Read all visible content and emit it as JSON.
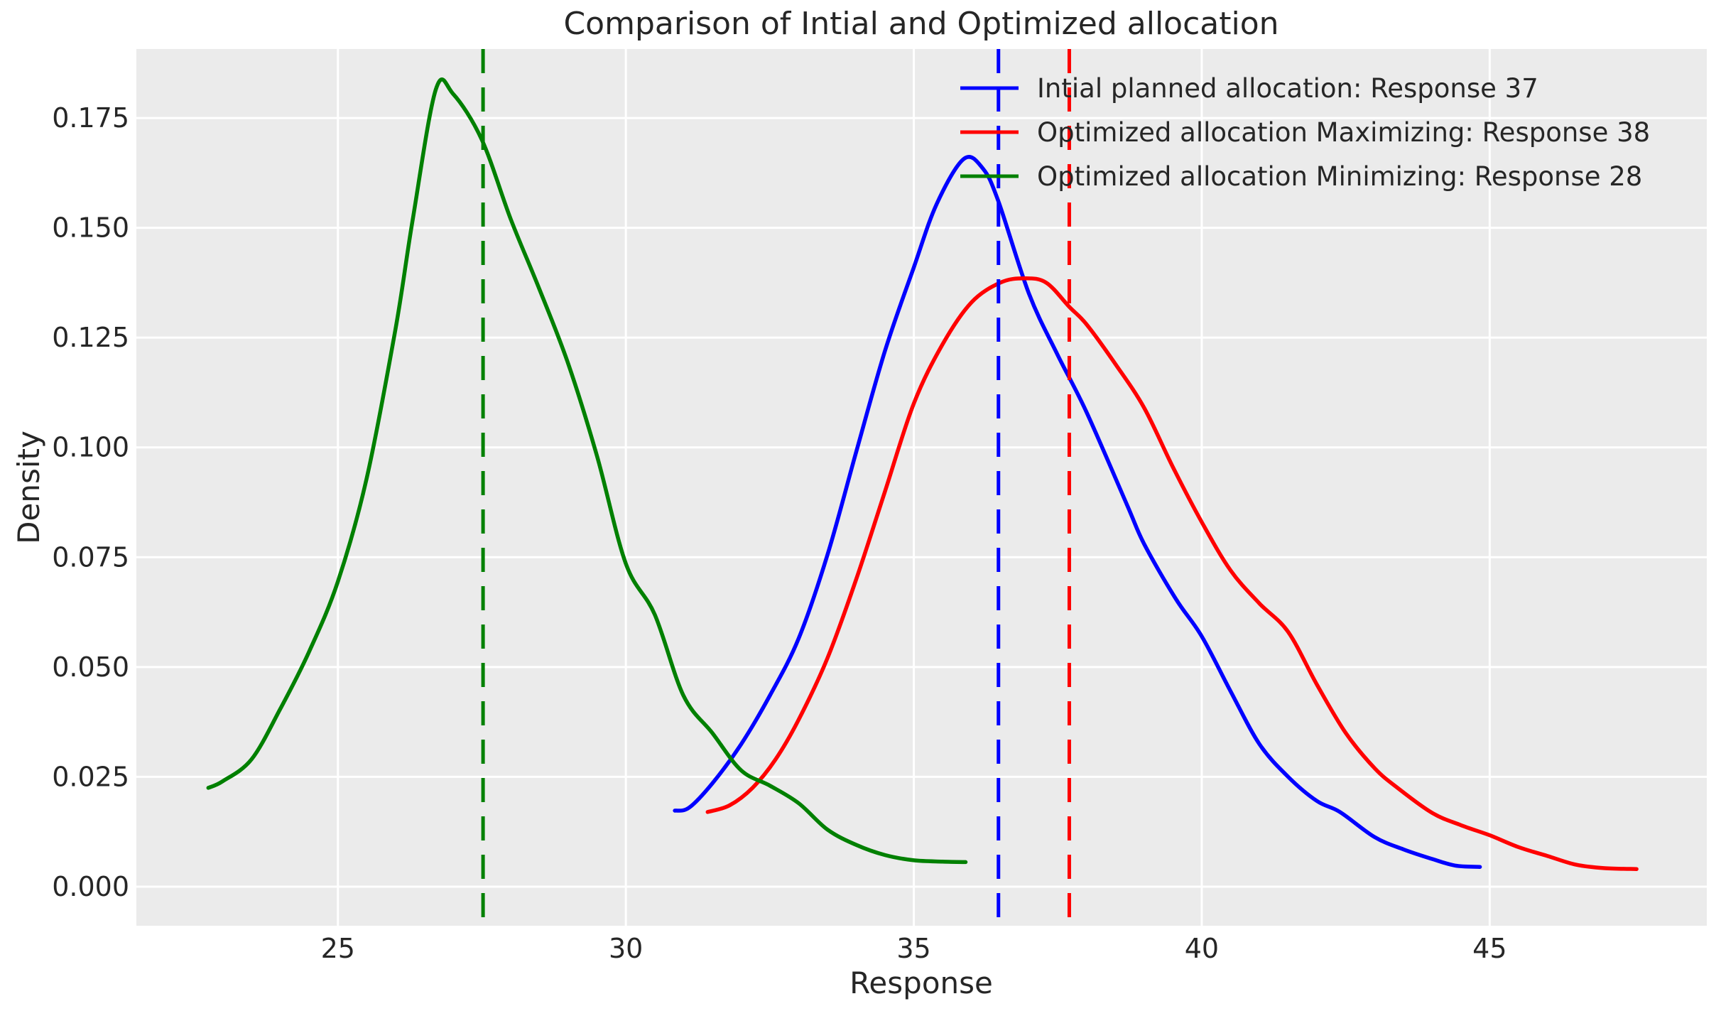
{
  "chart_data": {
    "type": "line",
    "title": "Comparison of Intial and Optimized allocation",
    "xlabel": "Response",
    "ylabel": "Density",
    "xlim": [
      21.5,
      48.77
    ],
    "ylim": [
      -0.0089,
      0.1907
    ],
    "grid": true,
    "legend_position": "upper right",
    "x_ticks": [
      {
        "value": 25,
        "label": "25"
      },
      {
        "value": 30,
        "label": "30"
      },
      {
        "value": 35,
        "label": "35"
      },
      {
        "value": 40,
        "label": "40"
      },
      {
        "value": 45,
        "label": "45"
      }
    ],
    "y_ticks": [
      {
        "value": 0.0,
        "label": "0.000"
      },
      {
        "value": 0.025,
        "label": "0.025"
      },
      {
        "value": 0.05,
        "label": "0.050"
      },
      {
        "value": 0.075,
        "label": "0.075"
      },
      {
        "value": 0.1,
        "label": "0.100"
      },
      {
        "value": 0.125,
        "label": "0.125"
      },
      {
        "value": 0.15,
        "label": "0.150"
      },
      {
        "value": 0.175,
        "label": "0.175"
      }
    ],
    "series": [
      {
        "name": "Intial planned allocation: Response 37",
        "color": "#0000ff",
        "line_style": "solid",
        "points": [
          [
            30.85,
            0.0173
          ],
          [
            31.1,
            0.018
          ],
          [
            31.5,
            0.0235
          ],
          [
            32,
            0.0324
          ],
          [
            32.5,
            0.0435
          ],
          [
            33,
            0.0565
          ],
          [
            33.5,
            0.0755
          ],
          [
            34,
            0.099
          ],
          [
            34.5,
            0.122
          ],
          [
            35,
            0.141
          ],
          [
            35.4,
            0.1555
          ],
          [
            35.87,
            0.1657
          ],
          [
            36.2,
            0.1635
          ],
          [
            36.47,
            0.156
          ],
          [
            37,
            0.135
          ],
          [
            37.5,
            0.121
          ],
          [
            38,
            0.108
          ],
          [
            38.7,
            0.087
          ],
          [
            39,
            0.078
          ],
          [
            39.55,
            0.0655
          ],
          [
            40,
            0.057
          ],
          [
            40.5,
            0.0445
          ],
          [
            41,
            0.0325
          ],
          [
            41.5,
            0.025
          ],
          [
            42,
            0.0195
          ],
          [
            42.4,
            0.017
          ],
          [
            43,
            0.0113
          ],
          [
            43.5,
            0.0085
          ],
          [
            44,
            0.0063
          ],
          [
            44.4,
            0.0048
          ],
          [
            44.83,
            0.0045
          ]
        ]
      },
      {
        "name": "Optimized allocation Maximizing: Response 38",
        "color": "#ff0000",
        "line_style": "solid",
        "points": [
          [
            31.42,
            0.017
          ],
          [
            31.8,
            0.0185
          ],
          [
            32.2,
            0.0225
          ],
          [
            32.6,
            0.029
          ],
          [
            33,
            0.038
          ],
          [
            33.5,
            0.052
          ],
          [
            34,
            0.07
          ],
          [
            34.5,
            0.09
          ],
          [
            35,
            0.11
          ],
          [
            35.5,
            0.1235
          ],
          [
            36,
            0.133
          ],
          [
            36.5,
            0.1375
          ],
          [
            36.92,
            0.1385
          ],
          [
            37.3,
            0.1375
          ],
          [
            37.7,
            0.132
          ],
          [
            38,
            0.128
          ],
          [
            38.5,
            0.119
          ],
          [
            39,
            0.109
          ],
          [
            39.5,
            0.0955
          ],
          [
            40,
            0.083
          ],
          [
            40.5,
            0.072
          ],
          [
            41,
            0.0645
          ],
          [
            41.5,
            0.058
          ],
          [
            42,
            0.046
          ],
          [
            42.5,
            0.035
          ],
          [
            43,
            0.027
          ],
          [
            43.4,
            0.0225
          ],
          [
            44,
            0.0168
          ],
          [
            44.5,
            0.014
          ],
          [
            45,
            0.0117
          ],
          [
            45.5,
            0.009
          ],
          [
            46,
            0.007
          ],
          [
            46.5,
            0.005
          ],
          [
            47,
            0.0042
          ],
          [
            47.55,
            0.004
          ]
        ]
      },
      {
        "name": "Optimized allocation Minimizing: Response 28",
        "color": "#008000",
        "line_style": "solid",
        "points": [
          [
            22.75,
            0.0225
          ],
          [
            23,
            0.024
          ],
          [
            23.5,
            0.029
          ],
          [
            24,
            0.0405
          ],
          [
            24.5,
            0.0535
          ],
          [
            25,
            0.0695
          ],
          [
            25.5,
            0.093
          ],
          [
            26,
            0.127
          ],
          [
            26.3,
            0.152
          ],
          [
            26.7,
            0.1815
          ],
          [
            27,
            0.1805
          ],
          [
            27.5,
            0.17
          ],
          [
            28,
            0.152
          ],
          [
            28.5,
            0.136
          ],
          [
            29,
            0.119
          ],
          [
            29.5,
            0.098
          ],
          [
            30,
            0.0735
          ],
          [
            30.5,
            0.062
          ],
          [
            31,
            0.0435
          ],
          [
            31.5,
            0.035
          ],
          [
            32,
            0.0265
          ],
          [
            32.5,
            0.023
          ],
          [
            33,
            0.019
          ],
          [
            33.5,
            0.013
          ],
          [
            34,
            0.0095
          ],
          [
            34.5,
            0.0072
          ],
          [
            35,
            0.006
          ],
          [
            35.5,
            0.0057
          ],
          [
            35.9,
            0.0056
          ]
        ]
      }
    ],
    "mean_vlines": [
      {
        "x": 36.47,
        "color": "#0000ff",
        "line_style": "dashed"
      },
      {
        "x": 37.7,
        "color": "#ff0000",
        "line_style": "dashed"
      },
      {
        "x": 27.52,
        "color": "#008000",
        "line_style": "dashed"
      }
    ],
    "colors": {
      "plot_background": "#ebebeb",
      "grid": "#ffffff",
      "text": "#262626"
    }
  }
}
